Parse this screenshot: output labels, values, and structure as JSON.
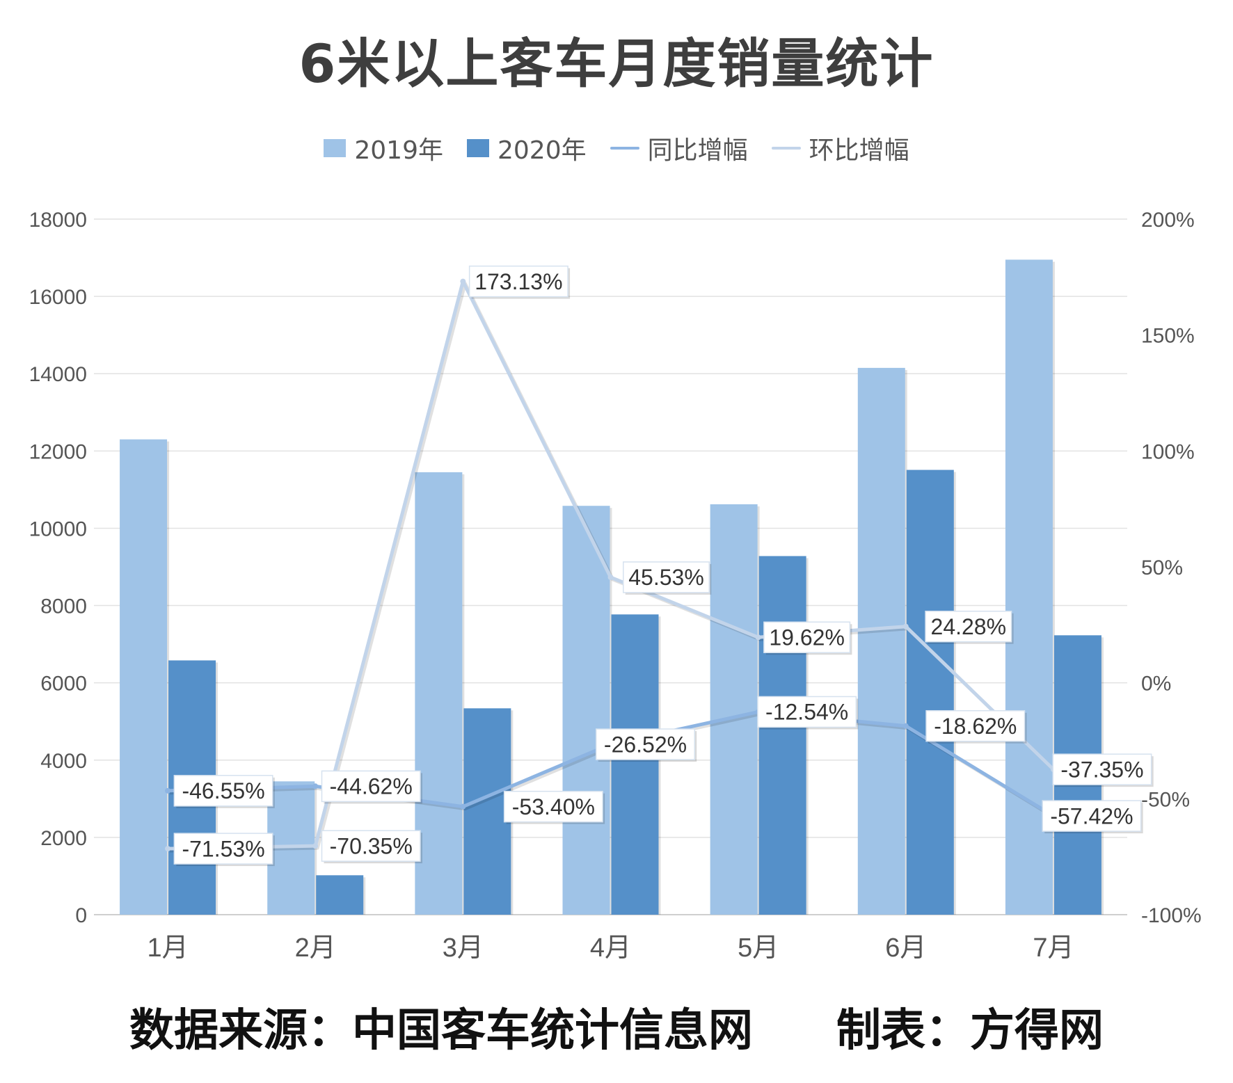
{
  "title": "6米以上客车月度销量统计",
  "legend": [
    {
      "name": "2019年",
      "kind": "bar",
      "color": "#9fc3e7"
    },
    {
      "name": "2020年",
      "kind": "bar",
      "color": "#5590c9"
    },
    {
      "name": "同比增幅",
      "kind": "line",
      "color": "#8db4e2"
    },
    {
      "name": "环比增幅",
      "kind": "line",
      "color": "#c2d4ea"
    }
  ],
  "footer": {
    "source": "数据来源：中国客车统计信息网",
    "maker": "制表：方得网"
  },
  "chart_data": {
    "type": "bar",
    "categories": [
      "1月",
      "2月",
      "3月",
      "4月",
      "5月",
      "6月",
      "7月"
    ],
    "series": [
      {
        "name": "2019年",
        "type": "bar",
        "axis": "left",
        "color": "#9fc3e7",
        "values": [
          12300,
          3450,
          11450,
          10580,
          10620,
          14150,
          16950
        ]
      },
      {
        "name": "2020年",
        "type": "bar",
        "axis": "left",
        "color": "#5590c9",
        "values": [
          6580,
          1020,
          5340,
          7770,
          9280,
          11510,
          7230
        ]
      },
      {
        "name": "同比增幅",
        "type": "line",
        "axis": "right",
        "color": "#8db4e2",
        "values": [
          -46.55,
          -44.62,
          -53.4,
          -26.52,
          -12.54,
          -18.62,
          -57.42
        ],
        "labels": [
          "-46.55%",
          "-44.62%",
          "-53.40%",
          "-26.52%",
          "-12.54%",
          "-18.62%",
          "-57.42%"
        ]
      },
      {
        "name": "环比增幅",
        "type": "line",
        "axis": "right",
        "color": "#c2d4ea",
        "values": [
          -71.53,
          -70.35,
          173.13,
          45.53,
          19.62,
          24.28,
          -37.35
        ],
        "labels": [
          "-71.53%",
          "-70.35%",
          "173.13%",
          "45.53%",
          "19.62%",
          "24.28%",
          "-37.35%"
        ]
      }
    ],
    "y_left": {
      "min": 0,
      "max": 18000,
      "ticks": [
        "0",
        "2000",
        "4000",
        "6000",
        "8000",
        "10000",
        "12000",
        "14000",
        "16000",
        "18000"
      ]
    },
    "y_right": {
      "min": -100,
      "max": 200,
      "ticks": [
        "-100%",
        "-50%",
        "0%",
        "50%",
        "100%",
        "150%",
        "200%"
      ]
    },
    "grid": true,
    "legend_position": "top"
  }
}
